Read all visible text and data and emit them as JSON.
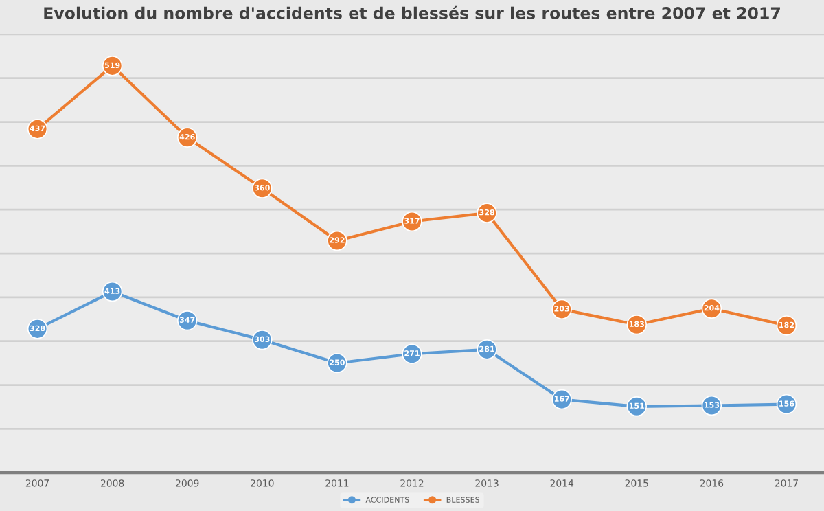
{
  "chart_data": {
    "type": "line",
    "title": "Evolution du nombre d'accidents et de blessés sur les routes entre 2007 et 2017",
    "categories": [
      "2007",
      "2008",
      "2009",
      "2010",
      "2011",
      "2012",
      "2013",
      "2014",
      "2015",
      "2016",
      "2017"
    ],
    "series": [
      {
        "name": "ACCIDENTS",
        "color": "#5b9bd5",
        "values": [
          328,
          413,
          347,
          303,
          250,
          271,
          281,
          167,
          151,
          153,
          156
        ]
      },
      {
        "name": "BLESSES",
        "color": "#ed7d31",
        "axis": "y2",
        "values": [
          437,
          519,
          426,
          360,
          292,
          317,
          328,
          203,
          183,
          204,
          182
        ]
      }
    ],
    "ylim": [
      0,
      1000
    ],
    "yticks": [
      {
        "value": 0,
        "label": null
      },
      {
        "value": 100,
        "label": null
      },
      {
        "value": 200,
        "label": null
      },
      {
        "value": 300,
        "label": null
      },
      {
        "value": 400,
        "label": null
      },
      {
        "value": 500,
        "label": null
      },
      {
        "value": 600,
        "label": null
      },
      {
        "value": 700,
        "label": null
      },
      {
        "value": 800,
        "label": null
      },
      {
        "value": 900,
        "label": null
      },
      {
        "value": 1000,
        "label": null
      }
    ],
    "y2lim": [
      -9,
      560
    ],
    "tick_labels": "x",
    "grid": "y",
    "legend": "bottom",
    "marker": "circle",
    "line_style": "solid",
    "data_labels": true
  }
}
